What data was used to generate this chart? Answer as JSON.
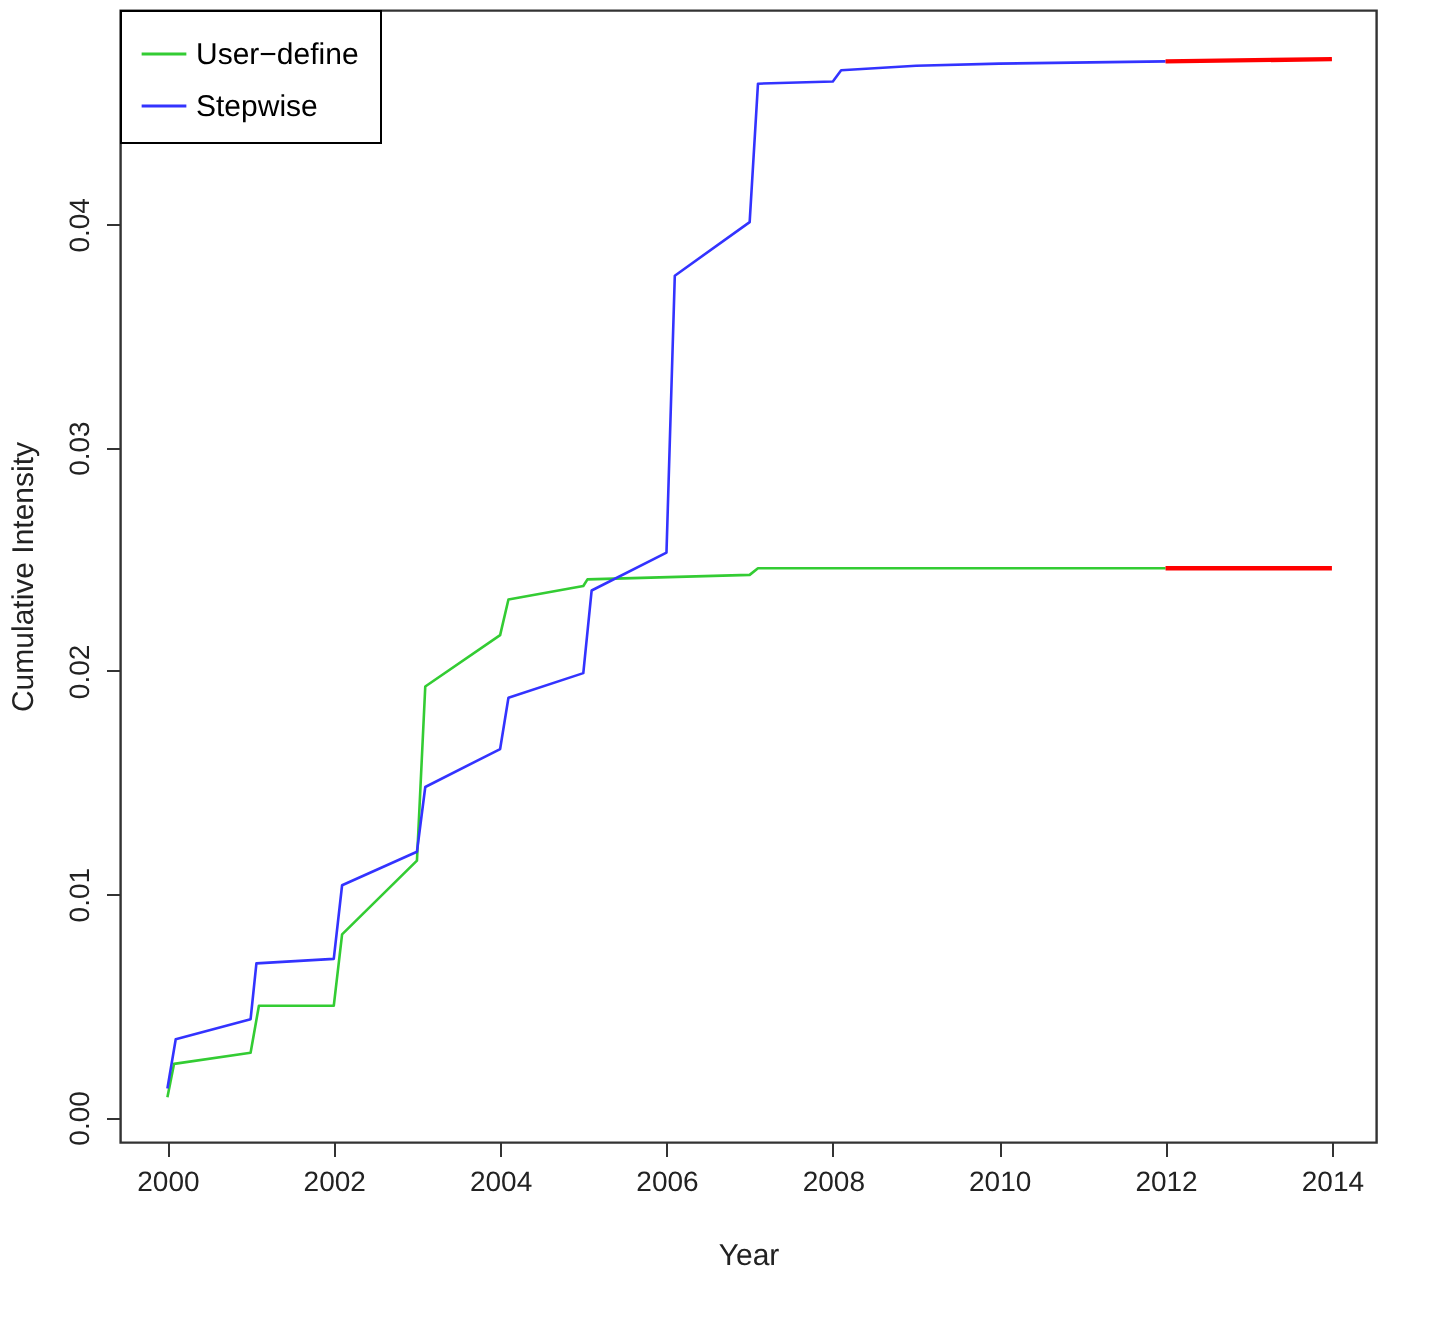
{
  "chart_data": {
    "type": "line",
    "xlabel": "Year",
    "ylabel": "Cumulative Intensity",
    "xlim": [
      1999.43,
      2014.53
    ],
    "ylim": [
      -0.0011,
      0.0496
    ],
    "xticks": [
      2000,
      2002,
      2004,
      2006,
      2008,
      2010,
      2012,
      2014
    ],
    "yticks": [
      {
        "value": 0,
        "label": "0.00"
      },
      {
        "value": 0.01,
        "label": "0.01"
      },
      {
        "value": 0.02,
        "label": "0.02"
      },
      {
        "value": 0.03,
        "label": "0.03"
      },
      {
        "value": 0.04,
        "label": "0.04"
      }
    ],
    "grid": false,
    "legend": "top left",
    "line_style": "solid",
    "marker": "none",
    "series": [
      {
        "name": "User−define",
        "color": "#33cc33",
        "x": [
          2000.0,
          2000.08,
          2001.0,
          2001.1,
          2002.0,
          2002.1,
          2003.0,
          2003.1,
          2004.0,
          2004.1,
          2005.0,
          2005.05,
          2007.0,
          2007.1,
          2012.0
        ],
        "values": [
          0.0009,
          0.0024,
          0.0029,
          0.005,
          0.005,
          0.0082,
          0.0115,
          0.0193,
          0.0216,
          0.0232,
          0.0238,
          0.0241,
          0.0243,
          0.0246,
          0.0246
        ]
      },
      {
        "name": "Stepwise",
        "color": "#3333ff",
        "x": [
          2000.0,
          2000.1,
          2001.0,
          2001.07,
          2002.0,
          2002.1,
          2003.0,
          2003.1,
          2004.0,
          2004.1,
          2005.0,
          2005.1,
          2006.0,
          2006.1,
          2007.0,
          2007.1,
          2008.0,
          2008.1,
          2009.0,
          2010.0,
          2012.0
        ],
        "values": [
          0.0013,
          0.0035,
          0.0044,
          0.0069,
          0.0071,
          0.0104,
          0.0119,
          0.0148,
          0.0165,
          0.0188,
          0.0199,
          0.0236,
          0.0253,
          0.0377,
          0.0401,
          0.0463,
          0.0464,
          0.0469,
          0.0471,
          0.0472,
          0.0473
        ]
      },
      {
        "color": "#ff0000",
        "x": [
          2012.0,
          2014.0
        ],
        "values": [
          0.0246,
          0.0246
        ]
      },
      {
        "color": "#ff0000",
        "x": [
          2012.0,
          2014.0
        ],
        "values": [
          0.0473,
          0.0474
        ]
      }
    ]
  }
}
